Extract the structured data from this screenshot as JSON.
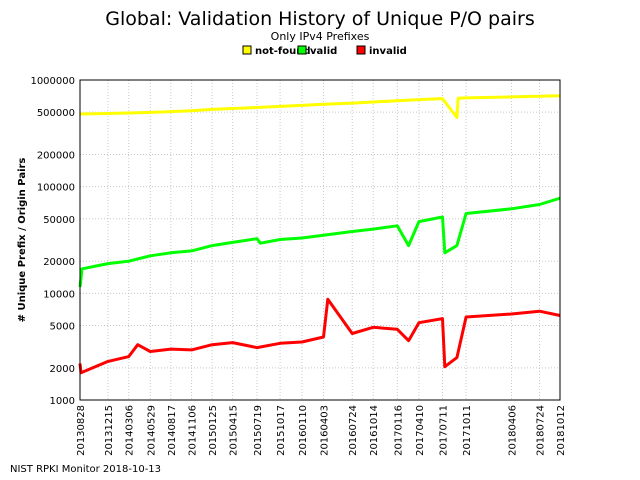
{
  "chart_data": {
    "type": "line",
    "title": "Global: Validation History of Unique P/O pairs",
    "subtitle": "Only IPv4 Prefixes",
    "ylabel": "# Unique Prefix / Origin Pairs",
    "xlabel": "",
    "y_scale": "log",
    "ylim": [
      1000,
      1000000
    ],
    "y_ticks": [
      1000,
      2000,
      5000,
      10000,
      20000,
      50000,
      100000,
      200000,
      500000,
      1000000
    ],
    "x_ticks": [
      "20130828",
      "20131215",
      "20140306",
      "20140529",
      "20140817",
      "20141106",
      "20150125",
      "20150415",
      "20150719",
      "20151017",
      "20160110",
      "20160403",
      "20160724",
      "20161014",
      "20170116",
      "20170410",
      "20170711",
      "20171011",
      "20180406",
      "20180724",
      "20181012"
    ],
    "grid": true,
    "legend_position": "top",
    "series": [
      {
        "name": "not-found",
        "color": "#ffff00",
        "points": [
          [
            "20130828",
            480000
          ],
          [
            "20131215",
            485000
          ],
          [
            "20140306",
            490000
          ],
          [
            "20140529",
            497000
          ],
          [
            "20140817",
            505000
          ],
          [
            "20141106",
            515000
          ],
          [
            "20150125",
            530000
          ],
          [
            "20150415",
            540000
          ],
          [
            "20150719",
            552000
          ],
          [
            "20151017",
            565000
          ],
          [
            "20160110",
            578000
          ],
          [
            "20160403",
            592000
          ],
          [
            "20160724",
            608000
          ],
          [
            "20161014",
            622000
          ],
          [
            "20170116",
            640000
          ],
          [
            "20170410",
            655000
          ],
          [
            "20170711",
            670000
          ],
          [
            "20170905",
            445000
          ],
          [
            "20170910",
            675000
          ],
          [
            "20171011",
            680000
          ],
          [
            "20180406",
            695000
          ],
          [
            "20180724",
            705000
          ],
          [
            "20181012",
            712000
          ]
        ]
      },
      {
        "name": "valid",
        "color": "#00ff00",
        "points": [
          [
            "20130828",
            11500
          ],
          [
            "20130905",
            17000
          ],
          [
            "20131215",
            19000
          ],
          [
            "20140306",
            20000
          ],
          [
            "20140529",
            22500
          ],
          [
            "20140817",
            24000
          ],
          [
            "20141106",
            25000
          ],
          [
            "20150125",
            28000
          ],
          [
            "20150415",
            30000
          ],
          [
            "20150719",
            32500
          ],
          [
            "20150801",
            29500
          ],
          [
            "20151017",
            32000
          ],
          [
            "20160110",
            33000
          ],
          [
            "20160403",
            35000
          ],
          [
            "20160724",
            38000
          ],
          [
            "20161014",
            40000
          ],
          [
            "20170116",
            43000
          ],
          [
            "20170301",
            28000
          ],
          [
            "20170410",
            47000
          ],
          [
            "20170711",
            52000
          ],
          [
            "20170720",
            24000
          ],
          [
            "20170905",
            28000
          ],
          [
            "20171011",
            56000
          ],
          [
            "20180406",
            62000
          ],
          [
            "20180724",
            68000
          ],
          [
            "20181012",
            78000
          ]
        ]
      },
      {
        "name": "invalid",
        "color": "#ff0000",
        "points": [
          [
            "20130828",
            2200
          ],
          [
            "20130901",
            1800
          ],
          [
            "20131215",
            2300
          ],
          [
            "20140306",
            2550
          ],
          [
            "20140410",
            3300
          ],
          [
            "20140529",
            2850
          ],
          [
            "20140817",
            3000
          ],
          [
            "20141106",
            2950
          ],
          [
            "20150125",
            3300
          ],
          [
            "20150415",
            3450
          ],
          [
            "20150719",
            3100
          ],
          [
            "20151017",
            3400
          ],
          [
            "20160110",
            3500
          ],
          [
            "20160403",
            3900
          ],
          [
            "20160420",
            8800
          ],
          [
            "20160724",
            4200
          ],
          [
            "20161014",
            4800
          ],
          [
            "20170116",
            4600
          ],
          [
            "20170301",
            3600
          ],
          [
            "20170410",
            5300
          ],
          [
            "20170711",
            5800
          ],
          [
            "20170720",
            2050
          ],
          [
            "20170905",
            2500
          ],
          [
            "20171011",
            6000
          ],
          [
            "20180406",
            6400
          ],
          [
            "20180724",
            6800
          ],
          [
            "20181012",
            6200
          ]
        ]
      }
    ],
    "footer": "NIST RPKI Monitor 2018-10-13"
  }
}
